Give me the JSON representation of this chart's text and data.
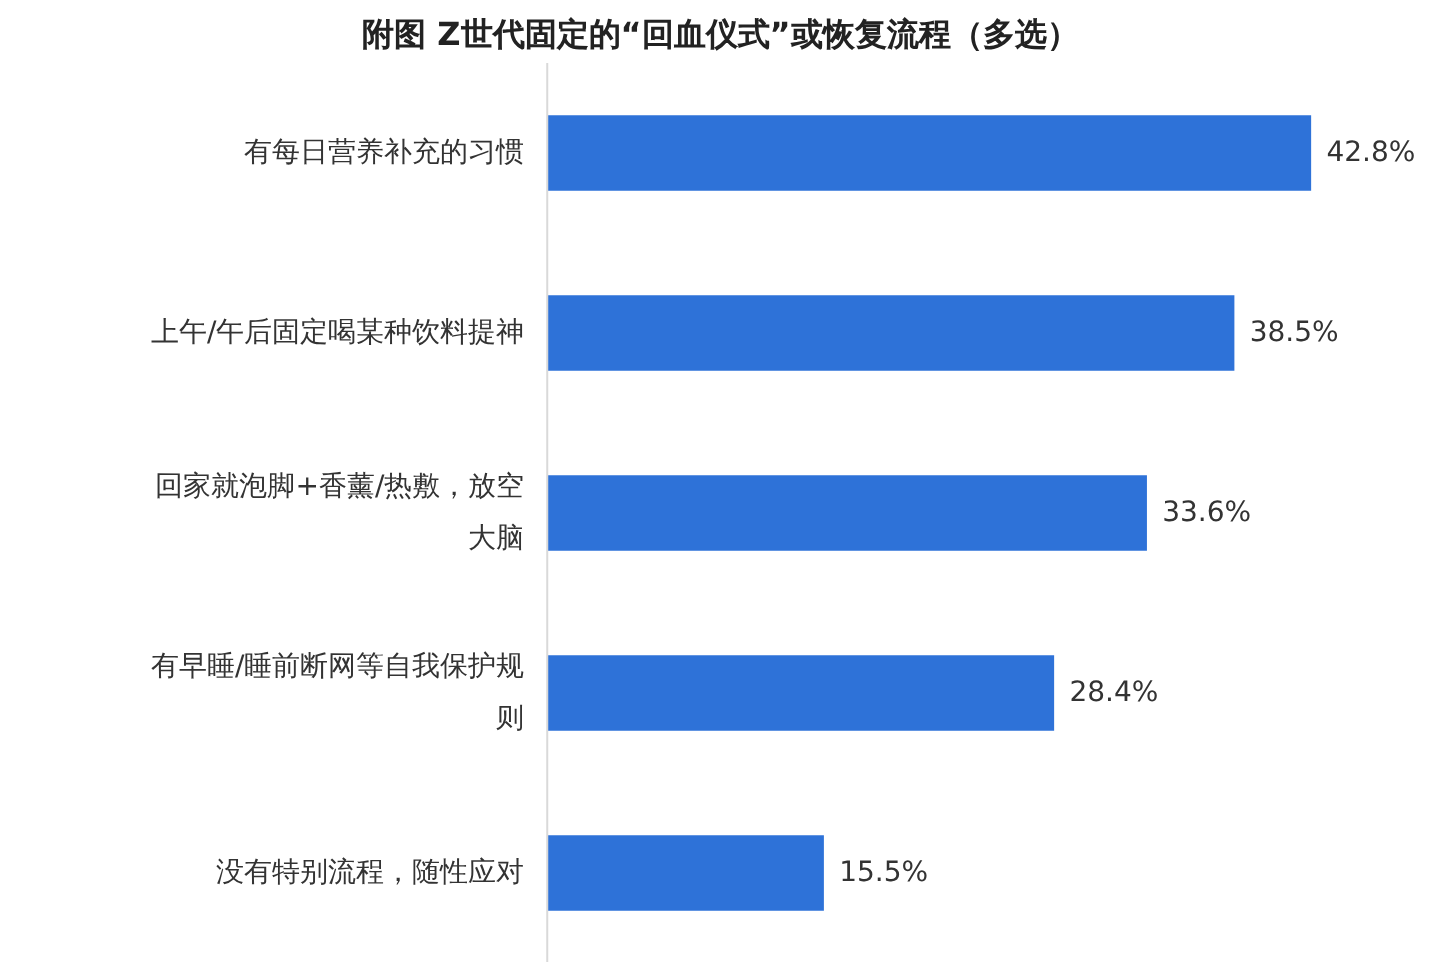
{
  "chart_data": {
    "type": "bar",
    "orientation": "horizontal",
    "title": "附图  Z世代固定的“回血仪式”或恢复流程（多选）",
    "categories": [
      "有每日营养补充的习惯",
      "上午/午后固定喝某种饮料提神",
      "回家就泡脚+香薰/热敷，放空大脑",
      "有早睡/睡前断网等自我保护规则",
      "没有特别流程，随性应对"
    ],
    "values": [
      42.8,
      38.5,
      33.6,
      28.4,
      15.5
    ],
    "value_labels": [
      "42.8%",
      "38.5%",
      "33.6%",
      "28.4%",
      "15.5%"
    ],
    "color": "#2e72d8"
  }
}
